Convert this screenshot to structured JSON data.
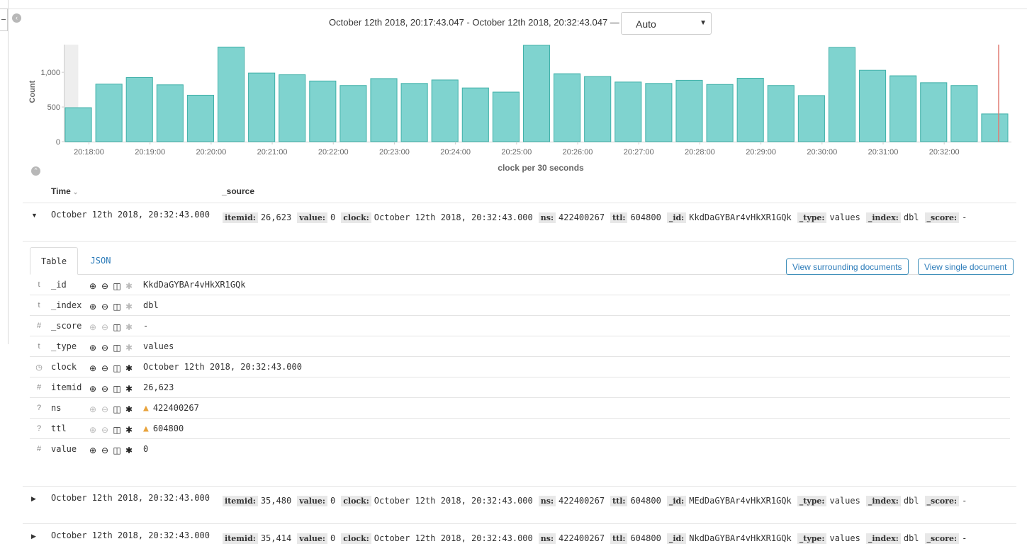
{
  "header": {
    "time_range": "October 12th 2018, 20:17:43.047 - October 12th 2018, 20:32:43.047 —",
    "interval": "Auto"
  },
  "chart_data": {
    "type": "bar",
    "ylabel": "Count",
    "xlabel": "clock per 30 seconds",
    "y_ticks": [
      "0",
      "500",
      "1,000"
    ],
    "x_ticks": [
      "20:18:00",
      "20:19:00",
      "20:20:00",
      "20:21:00",
      "20:22:00",
      "20:23:00",
      "20:24:00",
      "20:25:00",
      "20:26:00",
      "20:27:00",
      "20:28:00",
      "20:29:00",
      "20:30:00",
      "20:31:00",
      "20:32:00"
    ],
    "ylim": [
      0,
      1400
    ],
    "values": [
      490,
      830,
      925,
      820,
      670,
      1365,
      990,
      965,
      875,
      810,
      910,
      840,
      890,
      775,
      715,
      1390,
      980,
      940,
      860,
      840,
      885,
      825,
      915,
      810,
      665,
      1360,
      1030,
      950,
      850,
      810,
      400
    ],
    "bar_color": "#7fd3cf",
    "bar_border": "#3fb0a8",
    "marker_color": "#e07b73"
  },
  "columns": {
    "time": "Time",
    "sort_icon": "⌄",
    "source": "_source"
  },
  "rows": [
    {
      "toggle": "▼",
      "time": "October 12th 2018, 20:32:43.000",
      "source": [
        {
          "k": "itemid:",
          "v": "26,623"
        },
        {
          "k": "value:",
          "v": "0"
        },
        {
          "k": "clock:",
          "v": "October 12th 2018, 20:32:43.000"
        },
        {
          "k": "ns:",
          "v": "422400267"
        },
        {
          "k": "ttl:",
          "v": "604800"
        },
        {
          "k": "_id:",
          "v": "KkdDaGYBAr4vHkXR1GQk"
        },
        {
          "k": "_type:",
          "v": "values"
        },
        {
          "k": "_index:",
          "v": "dbl"
        },
        {
          "k": "_score:",
          "v": "-"
        }
      ]
    },
    {
      "toggle": "▶",
      "time": "October 12th 2018, 20:32:43.000",
      "source": [
        {
          "k": "itemid:",
          "v": "35,480"
        },
        {
          "k": "value:",
          "v": "0"
        },
        {
          "k": "clock:",
          "v": "October 12th 2018, 20:32:43.000"
        },
        {
          "k": "ns:",
          "v": "422400267"
        },
        {
          "k": "ttl:",
          "v": "604800"
        },
        {
          "k": "_id:",
          "v": "MEdDaGYBAr4vHkXR1GQk"
        },
        {
          "k": "_type:",
          "v": "values"
        },
        {
          "k": "_index:",
          "v": "dbl"
        },
        {
          "k": "_score:",
          "v": "-"
        }
      ]
    },
    {
      "toggle": "▶",
      "time": "October 12th 2018, 20:32:43.000",
      "source": [
        {
          "k": "itemid:",
          "v": "35,414"
        },
        {
          "k": "value:",
          "v": "0"
        },
        {
          "k": "clock:",
          "v": "October 12th 2018, 20:32:43.000"
        },
        {
          "k": "ns:",
          "v": "422400267"
        },
        {
          "k": "ttl:",
          "v": "604800"
        },
        {
          "k": "_id:",
          "v": "NkdDaGYBAr4vHkXR1GQk"
        },
        {
          "k": "_type:",
          "v": "values"
        },
        {
          "k": "_index:",
          "v": "dbl"
        },
        {
          "k": "_score:",
          "v": "-"
        }
      ]
    }
  ],
  "detail": {
    "tab_table": "Table",
    "tab_json": "JSON",
    "btn_surrounding": "View surrounding documents",
    "btn_single": "View single document",
    "fields": [
      {
        "type": "t",
        "name": "_id",
        "value": "KkdDaGYBAr4vHkXR1GQk",
        "dim": false,
        "star_dim": true,
        "warn": false
      },
      {
        "type": "t",
        "name": "_index",
        "value": "dbl",
        "dim": false,
        "star_dim": true,
        "warn": false
      },
      {
        "type": "#",
        "name": "_score",
        "value": " -",
        "dim": true,
        "star_dim": true,
        "warn": false
      },
      {
        "type": "t",
        "name": "_type",
        "value": "values",
        "dim": false,
        "star_dim": true,
        "warn": false
      },
      {
        "type": "◷",
        "name": "clock",
        "value": "October 12th 2018, 20:32:43.000",
        "dim": false,
        "star_dim": false,
        "warn": false
      },
      {
        "type": "#",
        "name": "itemid",
        "value": "26,623",
        "dim": false,
        "star_dim": false,
        "warn": false
      },
      {
        "type": "?",
        "name": "ns",
        "value": "422400267",
        "dim": true,
        "star_dim": false,
        "warn": true
      },
      {
        "type": "?",
        "name": "ttl",
        "value": "604800",
        "dim": true,
        "star_dim": false,
        "warn": true
      },
      {
        "type": "#",
        "name": "value",
        "value": "0",
        "dim": false,
        "star_dim": false,
        "warn": false
      }
    ]
  }
}
